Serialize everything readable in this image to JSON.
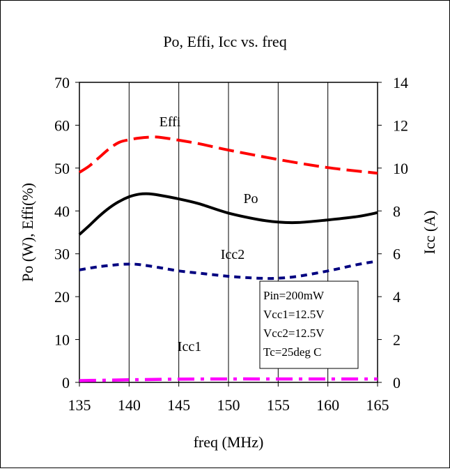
{
  "chart_data": {
    "type": "line",
    "title": "Po, Effi, Icc vs. freq",
    "xlabel": "freq (MHz)",
    "ylabel_left": "Po (W), Effi(%)",
    "ylabel_right": "Icc (A)",
    "xlim": [
      135,
      165
    ],
    "ylim_left": [
      0,
      70
    ],
    "ylim_right": [
      0,
      14
    ],
    "x_ticks": [
      "135",
      "140",
      "145",
      "150",
      "155",
      "160",
      "165"
    ],
    "y_ticks_left": [
      "0",
      "10",
      "20",
      "30",
      "40",
      "50",
      "60",
      "70"
    ],
    "y_ticks_right": [
      "0",
      "2",
      "4",
      "6",
      "8",
      "10",
      "12",
      "14"
    ],
    "grid": "vertical",
    "series": [
      {
        "name": "Effi",
        "axis": "left",
        "color": "#ff0000",
        "style": "long-dash",
        "x": [
          135,
          136,
          137,
          138,
          139,
          140,
          141,
          142,
          143,
          145,
          147,
          150,
          155,
          160,
          165
        ],
        "y": [
          49,
          50.5,
          52.5,
          54.5,
          56,
          56.6,
          57,
          57.2,
          57.2,
          56.5,
          55.7,
          54.2,
          52,
          50.1,
          48.8
        ]
      },
      {
        "name": "Po",
        "axis": "left",
        "color": "#000000",
        "style": "solid",
        "x": [
          135,
          136,
          137,
          138,
          139,
          140,
          141,
          142,
          143,
          145,
          147,
          150,
          153,
          155,
          157,
          160,
          163,
          165
        ],
        "y": [
          34.5,
          36.6,
          38.8,
          40.7,
          42.2,
          43.3,
          43.9,
          44,
          43.7,
          42.8,
          41.7,
          39.5,
          38,
          37.4,
          37.3,
          37.9,
          38.7,
          39.6
        ]
      },
      {
        "name": "Icc2",
        "axis": "right",
        "color": "#000080",
        "style": "short-dash",
        "x": [
          135,
          137,
          139,
          140,
          141,
          143,
          145,
          147,
          150,
          153,
          155,
          157,
          160,
          163,
          165
        ],
        "y": [
          5.25,
          5.4,
          5.5,
          5.52,
          5.5,
          5.36,
          5.2,
          5.1,
          4.95,
          4.86,
          4.86,
          4.95,
          5.2,
          5.5,
          5.66
        ]
      },
      {
        "name": "Icc1",
        "axis": "right",
        "color": "#ff00ff",
        "style": "dash-dot",
        "x": [
          135,
          140,
          145,
          150,
          155,
          160,
          165
        ],
        "y": [
          0.08,
          0.12,
          0.15,
          0.16,
          0.16,
          0.16,
          0.16
        ]
      }
    ],
    "annotations": {
      "effi_label": "Effi",
      "po_label": "Po",
      "icc2_label": "Icc2",
      "icc1_label": "Icc1"
    },
    "conditions": [
      "Pin=200mW",
      "Vcc1=12.5V",
      "Vcc2=12.5V",
      "Tc=25deg C"
    ]
  }
}
